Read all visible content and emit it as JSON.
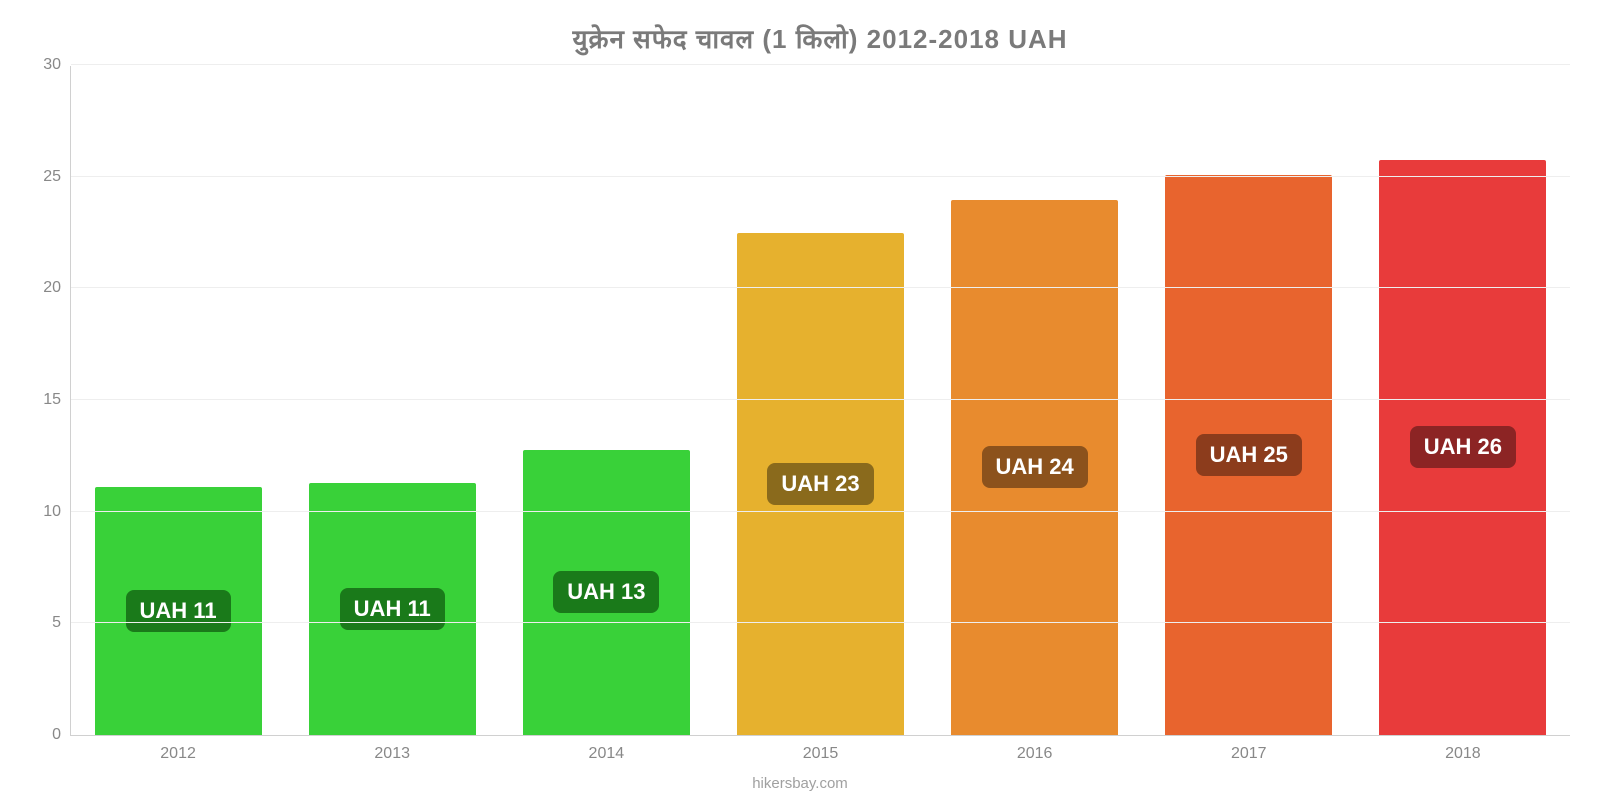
{
  "chart": {
    "type": "bar",
    "title": "युक्रेन   सफेद   चावल   (1 किलो) 2012-2018 UAH",
    "title_color": "#7a7a7a",
    "title_fontsize": 26,
    "background_color": "#ffffff",
    "grid_color": "#eeeeee",
    "axis_color": "#d0d0d0",
    "tick_label_color": "#888888",
    "tick_label_fontsize": 16,
    "bar_width_ratio": 0.78,
    "ylim": [
      0,
      30
    ],
    "ytick_step": 5,
    "yticks": [
      0,
      5,
      10,
      15,
      20,
      25,
      30
    ],
    "categories": [
      "2012",
      "2013",
      "2014",
      "2015",
      "2016",
      "2017",
      "2018"
    ],
    "values": [
      11.1,
      11.3,
      12.8,
      22.5,
      24.0,
      25.1,
      25.8
    ],
    "value_labels": [
      "UAH 11",
      "UAH 11",
      "UAH 13",
      "UAH 23",
      "UAH 24",
      "UAH 25",
      "UAH 26"
    ],
    "bar_colors": [
      "#39d139",
      "#39d139",
      "#39d139",
      "#e6b12e",
      "#e88b2e",
      "#e8642e",
      "#e83b3b"
    ],
    "badge_colors": [
      "#1a7a1a",
      "#1a7a1a",
      "#1a7a1a",
      "#8a6a1c",
      "#8c521c",
      "#8c3c1c",
      "#8c2424"
    ],
    "badge_text_color": "#ffffff",
    "badge_fontsize": 22,
    "badge_radius": 8
  },
  "attribution": "hikersbay.com",
  "attribution_color": "#a0a0a0"
}
